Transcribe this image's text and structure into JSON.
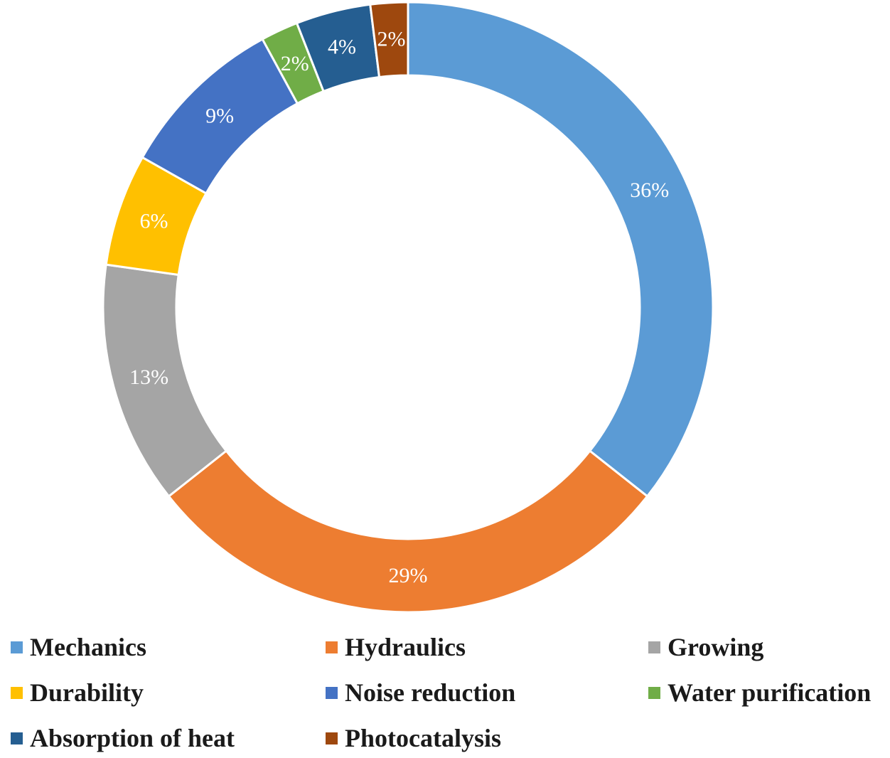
{
  "chart_data": {
    "type": "pie",
    "variant": "donut",
    "title": "",
    "legend_position": "bottom",
    "slices": [
      {
        "name": "Mechanics",
        "value": 36,
        "label": "36%",
        "color": "#5B9BD5"
      },
      {
        "name": "Hydraulics",
        "value": 29,
        "label": "29%",
        "color": "#ED7D31"
      },
      {
        "name": "Growing",
        "value": 13,
        "label": "13%",
        "color": "#A5A5A5"
      },
      {
        "name": "Durability",
        "value": 6,
        "label": "6%",
        "color": "#FFC000"
      },
      {
        "name": "Noise reduction",
        "value": 9,
        "label": "9%",
        "color": "#4472C4"
      },
      {
        "name": "Water purification",
        "value": 2,
        "label": "2%",
        "color": "#70AD47"
      },
      {
        "name": "Absorption of heat",
        "value": 4,
        "label": "4%",
        "color": "#255E91"
      },
      {
        "name": "Photocatalysis",
        "value": 2,
        "label": "2%",
        "color": "#9E480E"
      }
    ]
  }
}
